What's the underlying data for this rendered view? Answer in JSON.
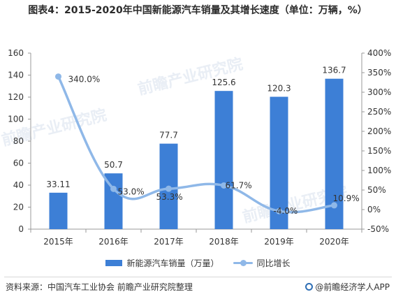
{
  "title": "图表4：2015-2020年中国新能源汽车销量及其增长速度（单位：万辆，%）",
  "colors": {
    "bar": "#3d7fd6",
    "line": "#8fb8e8",
    "axis": "#999999",
    "text": "#333333"
  },
  "chart_data": {
    "type": "bar",
    "categories": [
      "2015年",
      "2016年",
      "2017年",
      "2018年",
      "2019年",
      "2020年"
    ],
    "series": [
      {
        "name": "新能源汽车销量（万量）",
        "type": "bar",
        "axis": "left",
        "values": [
          33.11,
          50.7,
          77.7,
          125.6,
          120.3,
          136.7
        ],
        "labels": [
          "33.11",
          "50.7",
          "77.7",
          "125.6",
          "120.3",
          "136.7"
        ]
      },
      {
        "name": "同比增长",
        "type": "line",
        "axis": "right",
        "values": [
          340.0,
          53.0,
          53.3,
          61.7,
          -4.0,
          10.9
        ],
        "labels": [
          "340.0%",
          "53.0%",
          "53.3%",
          "61.7%",
          "-4.0%",
          "10.9%"
        ]
      }
    ],
    "y_left": {
      "min": 0,
      "max": 160,
      "ticks": [
        0,
        20,
        40,
        60,
        80,
        100,
        120,
        140,
        160
      ],
      "tick_labels": [
        "0",
        "20",
        "40",
        "60",
        "80",
        "100",
        "120",
        "140",
        "160"
      ]
    },
    "y_right": {
      "min": -50,
      "max": 400,
      "ticks": [
        -50,
        0,
        50,
        100,
        150,
        200,
        250,
        300,
        350,
        400
      ],
      "tick_labels": [
        "-50%",
        "0%",
        "50%",
        "100%",
        "150%",
        "200%",
        "250%",
        "300%",
        "350%",
        "400%"
      ]
    },
    "grid": false,
    "legend_position": "bottom"
  },
  "legend": {
    "bar_label": "新能源汽车销量（万量）",
    "line_label": "同比增长"
  },
  "watermarks": [
    "前瞻产业研究院",
    "前瞻产业研究院",
    "前瞻产业研究院"
  ],
  "footer": {
    "source": "资料来源：中国汽车工业协会 前瞻产业研究院整理",
    "brand": "@前瞻经济学人APP"
  }
}
